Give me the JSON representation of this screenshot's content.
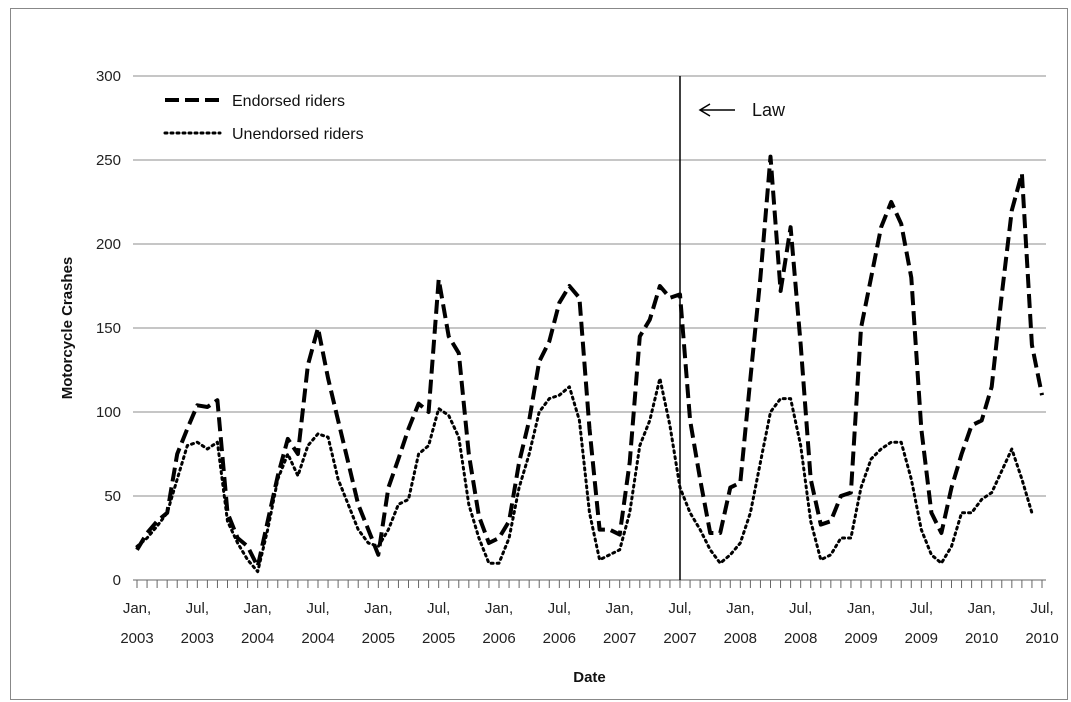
{
  "chart_data": {
    "type": "line",
    "xlabel": "Date",
    "ylabel": "Motorcycle Crashes",
    "ylim": [
      0,
      300
    ],
    "yticks": [
      0,
      50,
      100,
      150,
      200,
      250,
      300
    ],
    "grid": "horizontal",
    "legend_position": "top-left",
    "x_start": "2003-01",
    "x_ticks": [
      {
        "label1": "Jan,",
        "label2": "2003"
      },
      {
        "label1": "Jul,",
        "label2": "2003"
      },
      {
        "label1": "Jan,",
        "label2": "2004"
      },
      {
        "label1": "Jul,",
        "label2": "2004"
      },
      {
        "label1": "Jan,",
        "label2": "2005"
      },
      {
        "label1": "Jul,",
        "label2": "2005"
      },
      {
        "label1": "Jan,",
        "label2": "2006"
      },
      {
        "label1": "Jul,",
        "label2": "2006"
      },
      {
        "label1": "Jan,",
        "label2": "2007"
      },
      {
        "label1": "Jul,",
        "label2": "2007"
      },
      {
        "label1": "Jan,",
        "label2": "2008"
      },
      {
        "label1": "Jul,",
        "label2": "2008"
      },
      {
        "label1": "Jan,",
        "label2": "2009"
      },
      {
        "label1": "Jul,",
        "label2": "2009"
      },
      {
        "label1": "Jan,",
        "label2": "2010"
      },
      {
        "label1": "Jul,",
        "label2": "2010"
      }
    ],
    "series": [
      {
        "name": "Endorsed riders",
        "style": "dashed",
        "color": "#000000",
        "values": [
          18,
          28,
          35,
          40,
          75,
          90,
          104,
          103,
          107,
          40,
          25,
          20,
          8,
          35,
          62,
          84,
          75,
          128,
          150,
          120,
          95,
          70,
          45,
          30,
          15,
          55,
          72,
          90,
          105,
          100,
          179,
          145,
          135,
          75,
          38,
          22,
          25,
          35,
          70,
          95,
          130,
          142,
          165,
          175,
          168,
          90,
          30,
          30,
          27,
          70,
          145,
          155,
          175,
          168,
          170,
          95,
          60,
          28,
          28,
          55,
          58,
          120,
          180,
          252,
          172,
          210,
          140,
          60,
          33,
          35,
          50,
          52,
          150,
          180,
          210,
          225,
          212,
          180,
          90,
          40,
          28,
          55,
          75,
          92,
          95,
          115,
          170,
          220,
          242,
          140,
          110
        ]
      },
      {
        "name": "Unendorsed riders",
        "style": "dotted",
        "color": "#000000",
        "values": [
          20,
          25,
          32,
          40,
          60,
          80,
          82,
          78,
          82,
          35,
          22,
          12,
          5,
          30,
          60,
          75,
          62,
          80,
          87,
          85,
          60,
          45,
          30,
          22,
          20,
          30,
          45,
          48,
          75,
          80,
          102,
          98,
          85,
          45,
          25,
          10,
          10,
          25,
          55,
          75,
          100,
          108,
          110,
          115,
          95,
          40,
          12,
          15,
          18,
          40,
          80,
          95,
          120,
          92,
          55,
          40,
          30,
          18,
          10,
          15,
          22,
          40,
          70,
          100,
          108,
          108,
          80,
          35,
          12,
          15,
          25,
          25,
          55,
          72,
          78,
          82,
          82,
          60,
          30,
          15,
          10,
          20,
          40,
          40,
          48,
          52,
          65,
          78,
          60,
          40
        ]
      }
    ],
    "annotations": [
      {
        "text": "Law",
        "x_index": 54
      }
    ]
  }
}
